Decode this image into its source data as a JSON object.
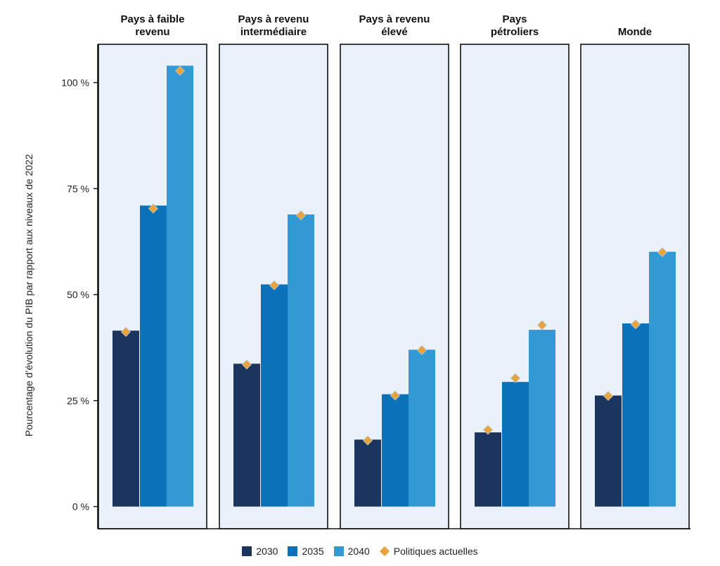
{
  "chart_data": {
    "type": "bar",
    "ylabel": "Pourcentage d’évolution du PIB par rapport aux niveaux de 2022",
    "ylim": [
      0,
      110
    ],
    "yticks": [
      0,
      25,
      50,
      75,
      100
    ],
    "ytick_labels": [
      "0 %",
      "25 %",
      "50 %",
      "75 %",
      "100 %"
    ],
    "panels": [
      {
        "title": [
          "Pays à faible",
          "revenu"
        ],
        "values": {
          "2030": 41.5,
          "2035": 71,
          "2040": 104
        },
        "current_policies": {
          "2030": 41.2,
          "2035": 70.3,
          "2040": 102.8
        }
      },
      {
        "title": [
          "Pays à revenu",
          "intermédiaire"
        ],
        "values": {
          "2030": 33.7,
          "2035": 52.4,
          "2040": 68.9
        },
        "current_policies": {
          "2030": 33.5,
          "2035": 52.2,
          "2040": 68.7
        }
      },
      {
        "title": [
          "Pays à revenu",
          "élevé"
        ],
        "values": {
          "2030": 15.8,
          "2035": 26.5,
          "2040": 37
        },
        "current_policies": {
          "2030": 15.6,
          "2035": 26.2,
          "2040": 36.9
        }
      },
      {
        "title": [
          "Pays",
          "pétroliers"
        ],
        "values": {
          "2030": 17.5,
          "2035": 29.4,
          "2040": 41.7
        },
        "current_policies": {
          "2030": 18.1,
          "2035": 30.3,
          "2040": 42.8
        }
      },
      {
        "title": [
          "Monde"
        ],
        "values": {
          "2030": 26.2,
          "2035": 43.2,
          "2040": 60.1
        },
        "current_policies": {
          "2030": 26.1,
          "2035": 43,
          "2040": 60
        }
      }
    ],
    "series": [
      {
        "name": "2030",
        "color": "#1c355e"
      },
      {
        "name": "2035",
        "color": "#0b72b9"
      },
      {
        "name": "2040",
        "color": "#3399d4"
      }
    ],
    "marker_series": {
      "name": "Politiques actuelles",
      "color": "#e8a33c"
    },
    "legend_position": "bottom",
    "panel_background": "#eaf1fa",
    "grid": false
  }
}
